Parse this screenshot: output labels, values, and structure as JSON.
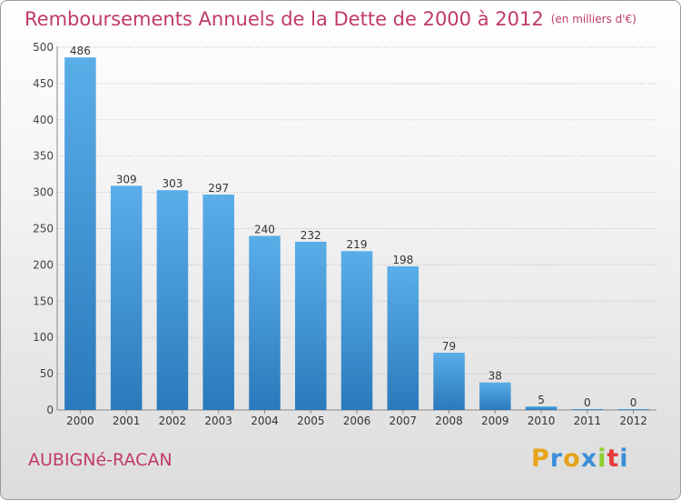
{
  "title": "Remboursements Annuels de la Dette de 2000 à 2012",
  "unit": "(en milliers d'€)",
  "commune": "AUBIGNé-RACAN",
  "brand": {
    "letters": [
      "P",
      "r",
      "o",
      "x",
      "i",
      "t",
      "i"
    ],
    "colors": [
      "#e8a41a",
      "#3a8fd8",
      "#e8a41a",
      "#3a8fd8",
      "#8ccf2a",
      "#e83a3a",
      "#3a8fd8"
    ]
  },
  "colors": {
    "title": "#c03a6a",
    "bar_light": "#5aaee8",
    "bar_dark": "#2a79bc",
    "grid": "#b8b8b8"
  },
  "chart_data": {
    "type": "bar",
    "categories": [
      "2000",
      "2001",
      "2002",
      "2003",
      "2004",
      "2005",
      "2006",
      "2007",
      "2008",
      "2009",
      "2010",
      "2011",
      "2012"
    ],
    "values": [
      486,
      309,
      303,
      297,
      240,
      232,
      219,
      198,
      79,
      38,
      5,
      0,
      0
    ],
    "data_labels": [
      "486",
      "309",
      "303",
      "297",
      "240",
      "232",
      "219",
      "198",
      "79",
      "38",
      "5",
      "0",
      "0"
    ],
    "ylim": [
      0,
      500
    ],
    "yticks": [
      0,
      50,
      100,
      150,
      200,
      250,
      300,
      350,
      400,
      450,
      500
    ],
    "ytick_labels": [
      "0",
      "50",
      "100",
      "150",
      "200",
      "250",
      "300",
      "350",
      "400",
      "450",
      "500"
    ],
    "grid": true
  }
}
